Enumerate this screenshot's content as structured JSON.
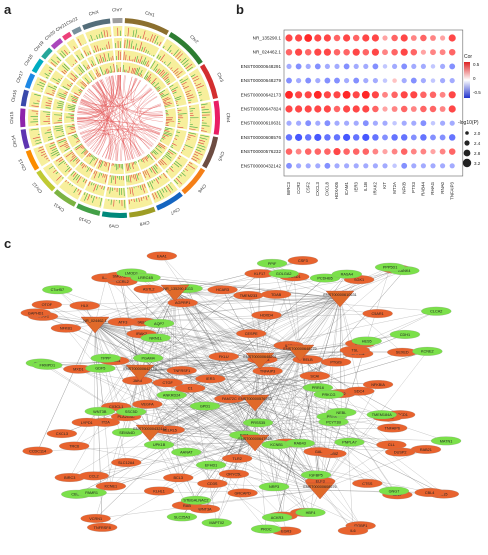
{
  "panels": {
    "a": "a",
    "b": "b",
    "c": "c"
  },
  "circos": {
    "chromosomes": [
      "Chr1",
      "Chr2",
      "Chr3",
      "Chr4",
      "Chr5",
      "Chr6",
      "Chr7",
      "Chr8",
      "Chr9",
      "Chr10",
      "Chr11",
      "Chr12",
      "Chr13",
      "Chr14",
      "Chr15",
      "Chr16",
      "Chr17",
      "Chr18",
      "Chr19",
      "Chr20",
      "Chr21",
      "Chr22",
      "ChrX",
      "ChrY"
    ],
    "colors": [
      "#8b6f2e",
      "#2e7d32",
      "#d32f2f",
      "#e91e63",
      "#6d4c41",
      "#f57f17",
      "#1565c0",
      "#9e9d24",
      "#00897b",
      "#43a047",
      "#7cb342",
      "#c0ca33",
      "#fb8c00",
      "#5e35b1",
      "#8e24aa",
      "#3949ab",
      "#1e88e5",
      "#00acc1",
      "#26a69a",
      "#ab47bc",
      "#ec407a",
      "#78909c",
      "#546e7a",
      "#9e9e9e"
    ],
    "track_color": "#f7ef9c",
    "link_color": "#e04848"
  },
  "chart_data": {
    "type": "heatmap",
    "rows": [
      "NR_135290.1",
      "NR_024462.1",
      "ENST00000648291",
      "ENST00000648279",
      "ENST00000642173",
      "ENST00000647824",
      "ENST00000610631",
      "ENST00000608576",
      "ENST00000576232",
      "ENST00000432142"
    ],
    "columns": [
      "BIRC3",
      "CCR2",
      "CSF2",
      "CXCL3",
      "CXCL8",
      "HOXA05",
      "ICAM1",
      "IER3",
      "IL1B",
      "IRAK2",
      "KIT",
      "MT2A",
      "NFKB",
      "PTX3",
      "RAB44",
      "RHAG",
      "RNA0",
      "TNFAIP3"
    ],
    "values": [
      [
        0.6,
        0.6,
        0.7,
        0.6,
        0.6,
        0.5,
        0.6,
        0.5,
        0.6,
        0.6,
        0.3,
        0.5,
        0.6,
        0.4,
        0.5,
        0.4,
        0.3,
        0.6
      ],
      [
        0.5,
        0.6,
        0.5,
        0.6,
        0.6,
        0.5,
        0.5,
        0.6,
        0.5,
        0.6,
        0.4,
        0.5,
        0.6,
        0.5,
        0.3,
        0.4,
        0.4,
        0.5
      ],
      [
        -0.3,
        -0.4,
        -0.3,
        -0.4,
        -0.3,
        -0.3,
        -0.4,
        -0.3,
        -0.3,
        -0.4,
        -0.2,
        -0.3,
        -0.4,
        -0.3,
        -0.3,
        -0.2,
        -0.3,
        -0.4
      ],
      [
        -0.4,
        -0.3,
        -0.4,
        -0.3,
        -0.4,
        -0.4,
        -0.3,
        -0.4,
        -0.3,
        -0.3,
        -0.2,
        0.2,
        -0.3,
        -0.4,
        -0.3,
        -0.2,
        -0.3,
        -0.3
      ],
      [
        0.7,
        0.6,
        0.6,
        0.7,
        0.6,
        0.6,
        0.7,
        0.6,
        0.7,
        0.6,
        0.4,
        0.5,
        0.6,
        0.6,
        0.5,
        0.5,
        0.4,
        0.6
      ],
      [
        0.6,
        0.6,
        0.6,
        0.6,
        0.6,
        0.5,
        0.6,
        0.6,
        0.6,
        0.5,
        0.3,
        0.4,
        0.5,
        0.4,
        0.5,
        0.5,
        0.4,
        0.6
      ],
      [
        -0.3,
        -0.3,
        -0.4,
        -0.3,
        -0.4,
        -0.3,
        -0.3,
        -0.3,
        -0.4,
        -0.3,
        -0.3,
        -0.2,
        -0.3,
        -0.3,
        -0.4,
        -0.2,
        -0.3,
        -0.3
      ],
      [
        -0.5,
        -0.6,
        -0.5,
        -0.6,
        -0.5,
        -0.5,
        -0.6,
        -0.5,
        -0.6,
        -0.5,
        -0.4,
        -0.5,
        -0.5,
        -0.4,
        -0.5,
        -0.4,
        -0.4,
        -0.5
      ],
      [
        0.5,
        0.4,
        0.5,
        0.5,
        0.5,
        0.6,
        0.5,
        0.5,
        0.5,
        0.4,
        0.3,
        0.4,
        0.5,
        0.4,
        0.4,
        0.3,
        0.4,
        0.5
      ],
      [
        -0.4,
        -0.3,
        -0.3,
        -0.3,
        -0.4,
        -0.3,
        -0.3,
        -0.3,
        -0.3,
        -0.3,
        -0.3,
        -0.2,
        -0.4,
        -0.3,
        -0.3,
        -0.3,
        -0.3,
        -0.3
      ]
    ],
    "color_legend": {
      "title": "Cor",
      "ticks": [
        "0.5",
        "0",
        "-0.5"
      ],
      "low": "#2233cc",
      "mid": "#ffffff",
      "high": "#dd2222"
    },
    "size_legend": {
      "title": "-log10(P)",
      "ticks": [
        "2.0",
        "2.4",
        "2.8",
        "3.2"
      ]
    }
  },
  "network": {
    "lnc_color": "#7be04a",
    "gene_color": "#e8632e",
    "hub_color": "#e06a2a",
    "edge_color": "#555555",
    "hubs": [
      "NR_135290.1",
      "ENST00000610631",
      "NR_024462.1",
      "ENST00000648291",
      "ENST00000642173",
      "ENST00000576232",
      "ENST00000648279",
      "ENST00000432142",
      "ENST00000647824",
      "ENST00000608576"
    ],
    "lnc_nodes": [
      "STBGALNAC2",
      "PRSS35",
      "C7orf61",
      "AQP7",
      "UPK1B",
      "CBSL",
      "HES5",
      "DSG3",
      "KANK4",
      "AANAT",
      "GDF5",
      "TPPP",
      "PCDHB5",
      "KCNB1",
      "LMOD1",
      "NRN1L",
      "ACKR3",
      "RAB43",
      "MATN1",
      "C7orf57",
      "PRR16",
      "PPIF",
      "PGAM4",
      "SLC25A3",
      "IGFBP5",
      "CLCA2",
      "RASA4",
      "SEMA4D",
      "GOLGA2",
      "PRKCG",
      "PSG8",
      "GNG7",
      "PROC",
      "WNT3B",
      "HBF4",
      "PNPLA7",
      "PAMR1",
      "PPP5D1",
      "EFHD1",
      "PCYT1B",
      "DIO1",
      "KCNE2",
      "SSC5D",
      "NEBL",
      "ANKRD24",
      "NRP3",
      "TMEM184A",
      "CDH1",
      "LRRC4B",
      "GPD1",
      "FRMPD1",
      "MAPT02"
    ],
    "gene_nodes": [
      "PLA2G4C",
      "FAM138",
      "TMEM233",
      "AGPRP1",
      "TRC6",
      "TNFAIP3",
      "WNT3A",
      "BCL3",
      "TFR2",
      "HELRL5",
      "RAB21",
      "JAK3",
      "DRAM1",
      "MT2A",
      "SOCS1",
      "BCSD1",
      "SPOCD1",
      "FAM72C",
      "CTSS",
      "C5AR1",
      "OTOF",
      "ASTL2",
      "IL15",
      "TNFAIP6",
      "ORYC5L",
      "CX3CL1",
      "IL1B",
      "NFKBIZ",
      "CCRL2",
      "ITGBP1",
      "IRAK2",
      "KLF17",
      "RAB44",
      "BIRC3",
      "CXCL8",
      "IER3",
      "IL6",
      "PTX3",
      "CESPE",
      "GAL",
      "EAA1",
      "TRAF1",
      "HLX",
      "PTGIS",
      "NFKBIA",
      "DUSP2",
      "HOXD4",
      "TNFRSF8",
      "CD55",
      "TLR2",
      "CXCL3",
      "SCAI",
      "LYPD1",
      "VEGFA",
      "RELB",
      "BCL11B",
      "KCNE1",
      "ELF3",
      "NFKB1",
      "TNFRSF1",
      "SLC12A4",
      "HCAR3",
      "IL4I1",
      "ICAM1",
      "CCL2",
      "TSL",
      "KLHL1",
      "GAPHD1",
      "SELP",
      "CTGF",
      "EGR3",
      "SMOXE",
      "CSF3",
      "MXD1",
      "SDC4",
      "VCRN1",
      "CCDC114",
      "CLL",
      "GRCAPD",
      "CBL4",
      "SEXED",
      "FKLU",
      "TDAB",
      "C1",
      "CD3S",
      "CD69",
      "SGK1",
      "RAB",
      "ATF3"
    ]
  }
}
